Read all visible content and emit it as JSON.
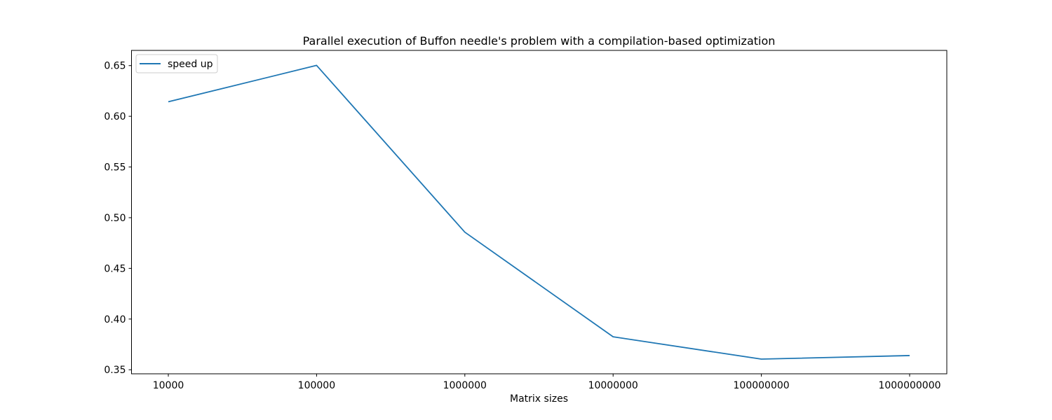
{
  "chart_data": {
    "type": "line",
    "title": "Parallel execution of Buffon needle's problem with a compilation-based optimization",
    "xlabel": "Matrix sizes",
    "ylabel": "",
    "categories": [
      "10000",
      "100000",
      "1000000",
      "10000000",
      "100000000",
      "1000000000"
    ],
    "series": [
      {
        "name": "speed up",
        "color": "#1f77b4",
        "values": [
          0.6143,
          0.6502,
          0.4857,
          0.3825,
          0.3605,
          0.364
        ]
      }
    ],
    "ylim": [
      0.346,
      0.665
    ],
    "yticks": [
      0.35,
      0.4,
      0.45,
      0.5,
      0.55,
      0.6,
      0.65
    ],
    "ytick_labels": [
      "0.35",
      "0.40",
      "0.45",
      "0.50",
      "0.55",
      "0.60",
      "0.65"
    ],
    "grid": false,
    "legend": "upper-left"
  }
}
